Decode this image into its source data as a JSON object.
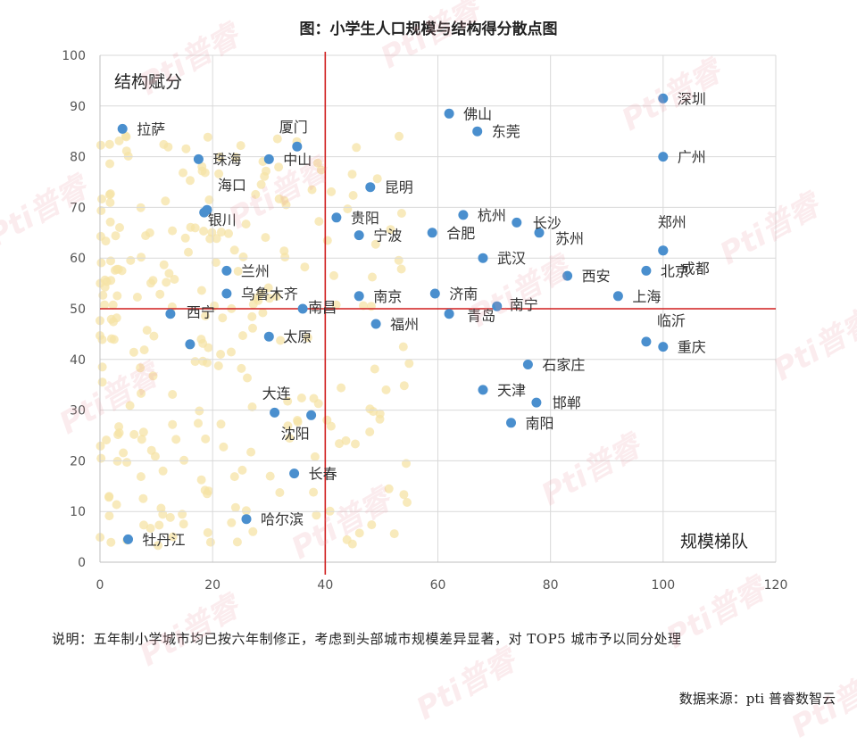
{
  "title": "图：小学生人口规模与结构得分散点图",
  "note": "说明：五年制小学城市均已按六年制修正，考虑到头部城市规模差异显著，对 TOP5 城市予以同分处理",
  "source": "数据来源：pti 普睿数智云",
  "watermark": "Pti普睿",
  "colors": {
    "point": "#4a8fce",
    "bg_point": "#f6e3a6",
    "divider": "#d01f1f",
    "grid": "#d9d9d9",
    "label": "#333333",
    "tick": "#555555"
  },
  "chart_data": {
    "type": "scatter",
    "title": "图：小学生人口规模与结构得分散点图",
    "xlabel": "规模梯队",
    "ylabel": "结构赋分",
    "xlim": [
      0,
      120
    ],
    "ylim": [
      0,
      100
    ],
    "xticks": [
      0,
      20,
      40,
      60,
      80,
      100,
      120
    ],
    "yticks": [
      0,
      10,
      20,
      30,
      40,
      50,
      60,
      70,
      80,
      90,
      100
    ],
    "grid": true,
    "dividers": {
      "x": 40,
      "y": 50
    },
    "points": [
      {
        "name": "深圳",
        "x": 100,
        "y": 91.5
      },
      {
        "name": "佛山",
        "x": 62,
        "y": 88.5
      },
      {
        "name": "东莞",
        "x": 67,
        "y": 85
      },
      {
        "name": "拉萨",
        "x": 4,
        "y": 85.5
      },
      {
        "name": "厦门",
        "x": 35,
        "y": 82
      },
      {
        "name": "珠海",
        "x": 17.5,
        "y": 79.5
      },
      {
        "name": "中山",
        "x": 30,
        "y": 79.5
      },
      {
        "name": "广州",
        "x": 100,
        "y": 80
      },
      {
        "name": "昆明",
        "x": 48,
        "y": 74
      },
      {
        "name": "海口",
        "x": 19,
        "y": 69.5
      },
      {
        "name": "银川",
        "x": 18.5,
        "y": 69
      },
      {
        "name": "贵阳",
        "x": 42,
        "y": 68
      },
      {
        "name": "杭州",
        "x": 64.5,
        "y": 68.5
      },
      {
        "name": "长沙",
        "x": 74,
        "y": 67
      },
      {
        "name": "苏州",
        "x": 78,
        "y": 65
      },
      {
        "name": "宁波",
        "x": 46,
        "y": 64.5
      },
      {
        "name": "合肥",
        "x": 59,
        "y": 65
      },
      {
        "name": "郑州",
        "x": 100,
        "y": 61.5
      },
      {
        "name": "成都",
        "x": 100,
        "y": 61.5
      },
      {
        "name": "武汉",
        "x": 68,
        "y": 60
      },
      {
        "name": "兰州",
        "x": 22.5,
        "y": 57.5
      },
      {
        "name": "西安",
        "x": 83,
        "y": 56.5
      },
      {
        "name": "北京",
        "x": 97,
        "y": 57.5
      },
      {
        "name": "乌鲁木齐",
        "x": 22.5,
        "y": 53
      },
      {
        "name": "南京",
        "x": 46,
        "y": 52.5
      },
      {
        "name": "济南",
        "x": 59.5,
        "y": 53
      },
      {
        "name": "上海",
        "x": 92,
        "y": 52.5
      },
      {
        "name": "南昌",
        "x": 36,
        "y": 50
      },
      {
        "name": "南宁",
        "x": 70.5,
        "y": 50.5
      },
      {
        "name": "青岛",
        "x": 62,
        "y": 49
      },
      {
        "name": "西宁",
        "x": 12.5,
        "y": 49
      },
      {
        "name": "福州",
        "x": 49,
        "y": 47
      },
      {
        "name": "太原",
        "x": 30,
        "y": 44.5
      },
      {
        "name": "临沂",
        "x": 97,
        "y": 43.5
      },
      {
        "name": "重庆",
        "x": 100,
        "y": 42.5
      },
      {
        "name": "",
        "x": 16,
        "y": 43
      },
      {
        "name": "石家庄",
        "x": 76,
        "y": 39
      },
      {
        "name": "天津",
        "x": 68,
        "y": 34
      },
      {
        "name": "邯郸",
        "x": 77.5,
        "y": 31.5
      },
      {
        "name": "大连",
        "x": 31,
        "y": 29.5
      },
      {
        "name": "沈阳",
        "x": 37.5,
        "y": 29
      },
      {
        "name": "南阳",
        "x": 73,
        "y": 27.5
      },
      {
        "name": "长春",
        "x": 34.5,
        "y": 17.5
      },
      {
        "name": "哈尔滨",
        "x": 26,
        "y": 8.5
      },
      {
        "name": "牡丹江",
        "x": 5,
        "y": 4.5
      }
    ]
  }
}
